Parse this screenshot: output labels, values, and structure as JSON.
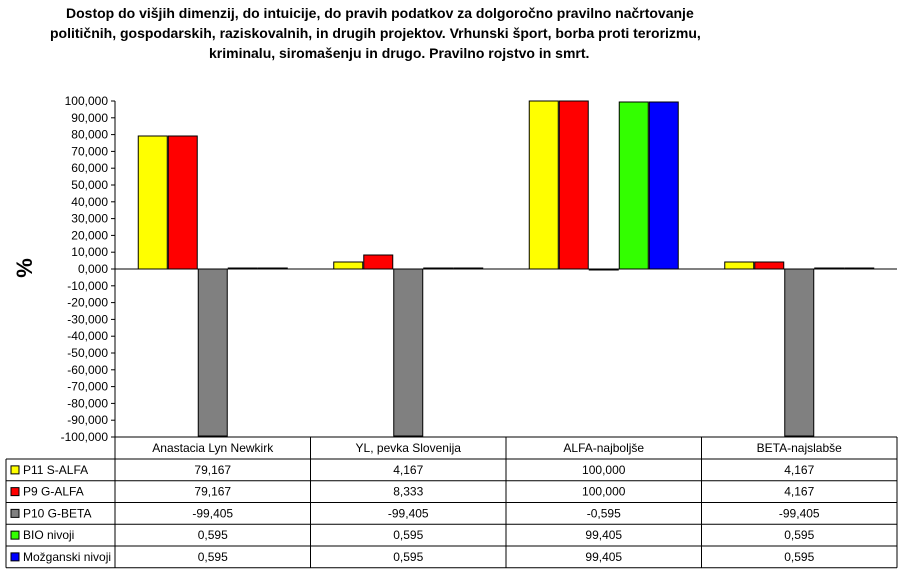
{
  "title_lines": [
    "Dostop do višjih dimenzij, do intuicije, do pravih podatkov za dolgoročno pravilno načrtovanje",
    "političnih, gospodarskih, raziskovalnih,  in drugih projektov. Vrhunski šport, borba proti terorizmu,",
    "kriminalu, siromašenju in drugo. Pravilno rojstvo in smrt."
  ],
  "chart_data": {
    "type": "bar",
    "title": "Dostop do višjih dimenzij, do intuicije, do pravih podatkov za dolgoročno pravilno načrtovanje političnih, gospodarskih, raziskovalnih,  in drugih projektov. Vrhunski šport, borba proti terorizmu, kriminalu, siromašenju in drugo. Pravilno rojstvo in smrt.",
    "ylabel": "%",
    "xlabel": "",
    "ylim": [
      -100,
      100
    ],
    "ytick_step": 10,
    "ytick_labels": [
      "100,000",
      "90,000",
      "80,000",
      "70,000",
      "60,000",
      "50,000",
      "40,000",
      "30,000",
      "20,000",
      "10,000",
      "0,000",
      "-10,000",
      "-20,000",
      "-30,000",
      "-40,000",
      "-50,000",
      "-60,000",
      "-70,000",
      "-80,000",
      "-90,000",
      "-100,000"
    ],
    "grid": false,
    "legend": "data-table",
    "categories": [
      "Anastacia Lyn Newkirk",
      "YL, pevka Slovenija",
      "ALFA-najboljše",
      "BETA-najslabše"
    ],
    "series": [
      {
        "name": "P11 S-ALFA",
        "color": "#ffff00",
        "values": [
          79.167,
          4.167,
          100.0,
          4.167
        ],
        "labels": [
          "79,167",
          "4,167",
          "100,000",
          "4,167"
        ]
      },
      {
        "name": "P9 G-ALFA",
        "color": "#ff0000",
        "values": [
          79.167,
          8.333,
          100.0,
          4.167
        ],
        "labels": [
          "79,167",
          "8,333",
          "100,000",
          "4,167"
        ]
      },
      {
        "name": "P10 G-BETA",
        "color": "#808080",
        "values": [
          -99.405,
          -99.405,
          -0.595,
          -99.405
        ],
        "labels": [
          "-99,405",
          "-99,405",
          "-0,595",
          "-99,405"
        ]
      },
      {
        "name": "BIO nivoji",
        "color": "#33ff00",
        "values": [
          0.595,
          0.595,
          99.405,
          0.595
        ],
        "labels": [
          "0,595",
          "0,595",
          "99,405",
          "0,595"
        ]
      },
      {
        "name": "Možganski nivoji",
        "color": "#0000ff",
        "values": [
          0.595,
          0.595,
          99.405,
          0.595
        ],
        "labels": [
          "0,595",
          "0,595",
          "99,405",
          "0,595"
        ]
      }
    ]
  }
}
